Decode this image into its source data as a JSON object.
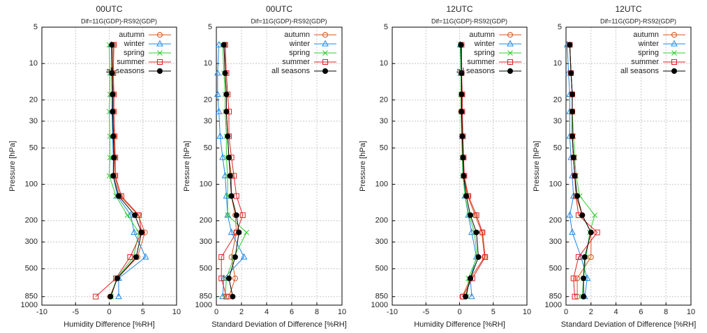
{
  "chart_data": [
    {
      "type": "line",
      "title": "00UTC",
      "subtitle": "Dif=11G(GDP)-RS92(GDP)",
      "x_label": "Humidity Difference [%RH]",
      "y_label": "Pressure [hPa]",
      "y": [
        7,
        12,
        18,
        25,
        40,
        60,
        85,
        125,
        180,
        250,
        400,
        600,
        850
      ],
      "xlim": [
        -10,
        10
      ],
      "xticks": [
        -10,
        -5,
        0,
        5,
        10
      ],
      "ylim": [
        5,
        1000
      ],
      "yticks": [
        5,
        10,
        20,
        30,
        50,
        100,
        200,
        300,
        500,
        850,
        1000
      ],
      "ylog": true,
      "yinvert": true,
      "grid": true,
      "legend": "top-right",
      "series": [
        {
          "name": "autumn",
          "color": "#d9531e",
          "marker": "circle",
          "values": [
            0.6,
            0.5,
            0.6,
            0.6,
            0.7,
            0.8,
            0.8,
            1.6,
            4.3,
            5.3,
            4.2,
            1.2,
            0.1
          ]
        },
        {
          "name": "winter",
          "color": "#1e88e5",
          "marker": "triangle",
          "values": [
            0.3,
            0.4,
            0.4,
            0.4,
            0.5,
            0.6,
            0.6,
            1.2,
            3.2,
            3.7,
            5.4,
            1.4,
            1.4
          ]
        },
        {
          "name": "spring",
          "color": "#2ecc2e",
          "marker": "cross",
          "values": [
            0.0,
            0.1,
            0.1,
            0.0,
            0.1,
            0.1,
            0.0,
            1.0,
            2.7,
            4.4,
            3.6,
            1.1,
            0.3
          ]
        },
        {
          "name": "summer",
          "color": "#e02020",
          "marker": "square",
          "values": [
            0.7,
            0.6,
            0.7,
            0.7,
            0.8,
            0.9,
            0.9,
            1.8,
            4.4,
            4.8,
            3.1,
            1.0,
            -2.0
          ]
        },
        {
          "name": "all seasons",
          "color": "#000000",
          "marker": "dot",
          "values": [
            0.4,
            0.4,
            0.5,
            0.5,
            0.6,
            0.7,
            0.6,
            1.4,
            3.8,
            4.8,
            4.0,
            1.2,
            0.2
          ]
        }
      ]
    },
    {
      "type": "line",
      "title": "00UTC",
      "subtitle": "Dif=11G(GDP)-RS92(GDP)",
      "x_label": "Standard Deviation of Difference [%RH]",
      "y_label": "Pressure [hPa]",
      "y": [
        7,
        12,
        18,
        25,
        40,
        60,
        85,
        125,
        180,
        250,
        400,
        600,
        850
      ],
      "xlim": [
        0,
        10
      ],
      "xticks": [
        0,
        2,
        4,
        6,
        8,
        10
      ],
      "ylim": [
        5,
        1000
      ],
      "yticks": [
        5,
        10,
        20,
        30,
        50,
        100,
        200,
        300,
        500,
        850,
        1000
      ],
      "ylog": true,
      "yinvert": true,
      "grid": true,
      "legend": "top-right",
      "series": [
        {
          "name": "autumn",
          "color": "#d9531e",
          "marker": "circle",
          "values": [
            0.7,
            0.7,
            0.8,
            0.8,
            0.9,
            1.0,
            1.2,
            1.2,
            1.5,
            1.6,
            1.2,
            1.5,
            1.0
          ]
        },
        {
          "name": "winter",
          "color": "#1e88e5",
          "marker": "triangle",
          "values": [
            0.2,
            0.1,
            0.1,
            0.2,
            0.3,
            0.5,
            0.7,
            0.8,
            0.9,
            1.2,
            2.2,
            0.6,
            0.5
          ]
        },
        {
          "name": "spring",
          "color": "#2ecc2e",
          "marker": "cross",
          "values": [
            0.5,
            0.6,
            0.7,
            0.7,
            0.8,
            0.8,
            0.9,
            0.9,
            0.9,
            2.4,
            1.4,
            0.8,
            0.7
          ]
        },
        {
          "name": "summer",
          "color": "#e02020",
          "marker": "square",
          "values": [
            0.7,
            0.8,
            0.9,
            1.0,
            1.0,
            1.2,
            1.4,
            1.6,
            2.1,
            1.6,
            0.4,
            0.4,
            0.8
          ]
        },
        {
          "name": "all seasons",
          "color": "#000000",
          "marker": "dot",
          "values": [
            0.6,
            0.7,
            0.8,
            0.8,
            0.9,
            1.0,
            1.1,
            1.2,
            1.6,
            1.8,
            1.5,
            1.0,
            1.3
          ]
        }
      ]
    },
    {
      "type": "line",
      "title": "12UTC",
      "subtitle": "Dif=11G(GDP)-RS92(GDP)",
      "x_label": "Humidity Difference [%RH]",
      "y_label": "Pressure [hPa]",
      "y": [
        7,
        12,
        18,
        25,
        40,
        60,
        85,
        125,
        180,
        250,
        400,
        600,
        850
      ],
      "xlim": [
        -10,
        10
      ],
      "xticks": [
        -10,
        -5,
        0,
        5,
        10
      ],
      "ylim": [
        5,
        1000
      ],
      "yticks": [
        5,
        10,
        20,
        30,
        50,
        100,
        200,
        300,
        500,
        850,
        1000
      ],
      "ylog": true,
      "yinvert": true,
      "grid": true,
      "legend": "top-right",
      "series": [
        {
          "name": "autumn",
          "color": "#d9531e",
          "marker": "circle",
          "values": [
            0.2,
            0.3,
            0.3,
            0.2,
            0.4,
            0.5,
            0.6,
            1.2,
            2.3,
            3.3,
            3.7,
            1.6,
            0.4
          ]
        },
        {
          "name": "winter",
          "color": "#1e88e5",
          "marker": "triangle",
          "values": [
            0.1,
            0.2,
            0.3,
            0.3,
            0.4,
            0.5,
            0.6,
            0.8,
            1.3,
            1.8,
            2.5,
            1.6,
            1.8
          ]
        },
        {
          "name": "spring",
          "color": "#2ecc2e",
          "marker": "cross",
          "values": [
            0.1,
            0.2,
            0.2,
            0.2,
            0.3,
            0.4,
            0.5,
            0.8,
            1.4,
            2.2,
            2.6,
            1.3,
            1.1
          ]
        },
        {
          "name": "summer",
          "color": "#e02020",
          "marker": "square",
          "values": [
            0.3,
            0.3,
            0.4,
            0.4,
            0.5,
            0.6,
            0.7,
            1.3,
            2.5,
            3.4,
            3.8,
            1.9,
            0.5
          ]
        },
        {
          "name": "all seasons",
          "color": "#000000",
          "marker": "dot",
          "values": [
            0.2,
            0.3,
            0.3,
            0.3,
            0.4,
            0.5,
            0.6,
            1.0,
            1.6,
            2.5,
            2.8,
            1.6,
            0.9
          ]
        }
      ]
    },
    {
      "type": "line",
      "title": "12UTC",
      "subtitle": "Dif=11G(GDP)-RS92(GDP)",
      "x_label": "Standard Deviation of Difference [%RH]",
      "y_label": "Pressure [hPa]",
      "y": [
        7,
        12,
        18,
        25,
        40,
        60,
        85,
        125,
        180,
        250,
        400,
        600,
        850
      ],
      "xlim": [
        0,
        10
      ],
      "xticks": [
        0,
        2,
        4,
        6,
        8,
        10
      ],
      "ylim": [
        5,
        1000
      ],
      "yticks": [
        5,
        10,
        20,
        30,
        50,
        100,
        200,
        300,
        500,
        850,
        1000
      ],
      "ylog": true,
      "yinvert": true,
      "grid": true,
      "legend": "top-right",
      "series": [
        {
          "name": "autumn",
          "color": "#d9531e",
          "marker": "circle",
          "values": [
            0.3,
            0.4,
            0.5,
            0.5,
            0.5,
            0.6,
            0.7,
            0.8,
            1.3,
            2.0,
            2.0,
            0.9,
            0.9
          ]
        },
        {
          "name": "winter",
          "color": "#1e88e5",
          "marker": "triangle",
          "values": [
            0.1,
            0.2,
            0.3,
            0.3,
            0.3,
            0.4,
            0.5,
            0.6,
            0.3,
            0.5,
            1.2,
            1.7,
            1.5
          ]
        },
        {
          "name": "spring",
          "color": "#2ecc2e",
          "marker": "cross",
          "values": [
            0.3,
            0.4,
            0.5,
            0.5,
            0.6,
            0.7,
            0.8,
            1.1,
            2.3,
            1.9,
            1.6,
            1.4,
            1.3
          ]
        },
        {
          "name": "summer",
          "color": "#e02020",
          "marker": "square",
          "values": [
            0.3,
            0.4,
            0.5,
            0.5,
            0.5,
            0.6,
            0.7,
            0.8,
            1.0,
            2.5,
            1.0,
            0.6,
            0.7
          ]
        },
        {
          "name": "all seasons",
          "color": "#000000",
          "marker": "dot",
          "values": [
            0.3,
            0.4,
            0.5,
            0.5,
            0.5,
            0.6,
            0.7,
            0.9,
            1.3,
            2.0,
            1.5,
            1.4,
            1.4
          ]
        }
      ]
    }
  ]
}
